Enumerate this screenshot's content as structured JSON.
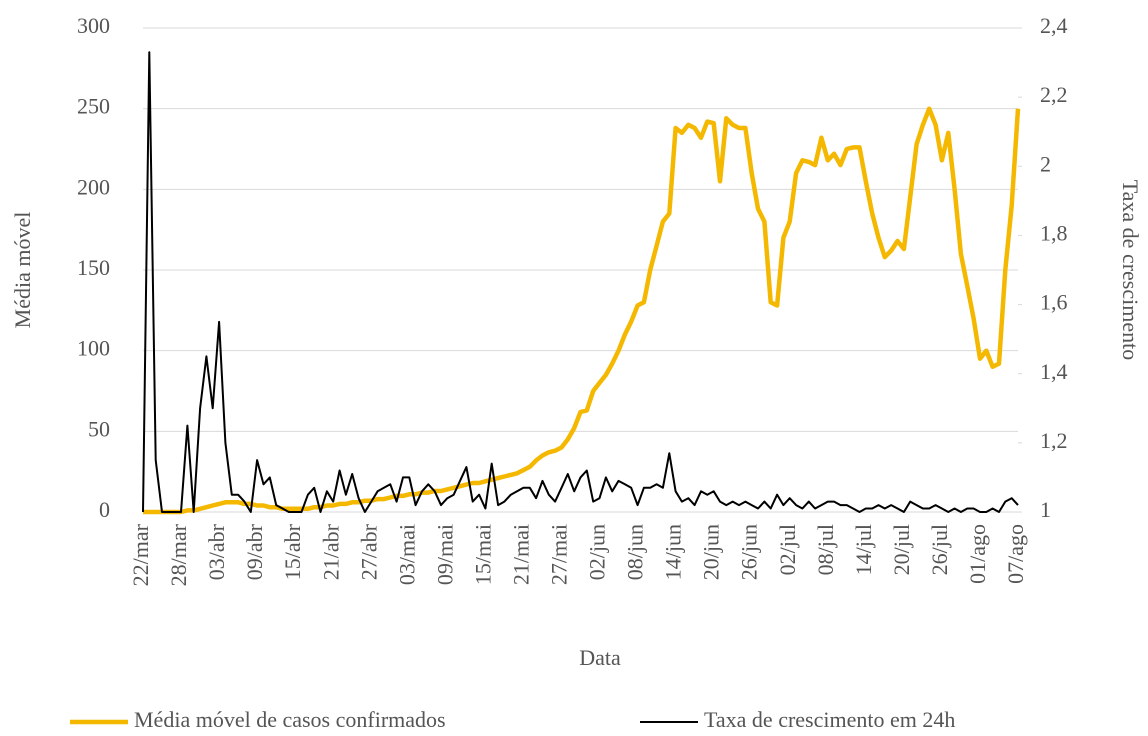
{
  "chart_data": {
    "type": "line",
    "xlabel": "Data",
    "ylabel": "Média móvel",
    "y2label": "Taxa de crescimento",
    "categories": [
      "22/mar",
      null,
      null,
      null,
      null,
      null,
      "28/mar",
      null,
      null,
      null,
      null,
      null,
      "03/abr",
      null,
      null,
      null,
      null,
      null,
      "09/abr",
      null,
      null,
      null,
      null,
      null,
      "15/abr",
      null,
      null,
      null,
      null,
      null,
      "21/abr",
      null,
      null,
      null,
      null,
      null,
      "27/abr",
      null,
      null,
      null,
      null,
      null,
      "03/mai",
      null,
      null,
      null,
      null,
      null,
      "09/mai",
      null,
      null,
      null,
      null,
      null,
      "15/mai",
      null,
      null,
      null,
      null,
      null,
      "21/mai",
      null,
      null,
      null,
      null,
      null,
      "27/mai",
      null,
      null,
      null,
      null,
      null,
      "02/jun",
      null,
      null,
      null,
      null,
      null,
      "08/jun",
      null,
      null,
      null,
      null,
      null,
      "14/jun",
      null,
      null,
      null,
      null,
      null,
      "20/jun",
      null,
      null,
      null,
      null,
      null,
      "26/jun",
      null,
      null,
      null,
      null,
      null,
      "02/jul",
      null,
      null,
      null,
      null,
      null,
      "08/jul",
      null,
      null,
      null,
      null,
      null,
      "14/jul",
      null,
      null,
      null,
      null,
      null,
      "20/jul",
      null,
      null,
      null,
      null,
      null,
      "26/jul",
      null,
      null,
      null,
      null,
      null,
      "01/ago",
      null,
      null,
      null,
      null,
      null,
      "07/ago"
    ],
    "series": [
      {
        "name": "Média móvel de casos confirmados",
        "color": "#f5b800",
        "values": [
          0,
          0,
          0,
          0,
          0,
          0,
          0,
          1,
          1,
          2,
          3,
          4,
          5,
          6,
          6,
          6,
          5,
          5,
          4,
          4,
          3,
          3,
          2,
          2,
          2,
          2,
          2,
          3,
          3,
          4,
          4,
          5,
          5,
          6,
          6,
          7,
          7,
          8,
          8,
          9,
          10,
          10,
          11,
          11,
          12,
          12,
          13,
          13,
          14,
          15,
          16,
          17,
          18,
          18,
          19,
          20,
          21,
          22,
          23,
          24,
          26,
          28,
          32,
          35,
          37,
          38,
          40,
          45,
          52,
          62,
          63,
          75,
          80,
          85,
          92,
          100,
          110,
          118,
          128,
          130,
          150,
          165,
          180,
          185,
          238,
          235,
          240,
          238,
          232,
          242,
          241,
          205,
          244,
          240,
          238,
          238,
          210,
          188,
          180,
          130,
          128,
          170,
          180,
          210,
          218,
          217,
          215,
          232,
          218,
          222,
          215,
          225,
          226,
          226,
          205,
          185,
          170,
          158,
          162,
          168,
          163,
          195,
          228,
          240,
          250,
          240,
          218,
          235,
          200,
          160,
          140,
          120,
          95,
          100,
          90,
          92,
          150,
          190,
          250
        ]
      },
      {
        "name": "Taxa de crescimento em 24h",
        "color": "#000000",
        "axis": "y2",
        "values": [
          1.0,
          2.33,
          1.15,
          1.0,
          1.0,
          1.0,
          1.0,
          1.25,
          1.0,
          1.3,
          1.45,
          1.3,
          1.55,
          1.2,
          1.05,
          1.05,
          1.03,
          1.0,
          1.15,
          1.08,
          1.1,
          1.02,
          1.01,
          1.0,
          1.0,
          1.0,
          1.05,
          1.07,
          1.0,
          1.06,
          1.03,
          1.12,
          1.05,
          1.11,
          1.04,
          1.0,
          1.03,
          1.06,
          1.07,
          1.08,
          1.03,
          1.1,
          1.1,
          1.02,
          1.06,
          1.08,
          1.06,
          1.02,
          1.04,
          1.05,
          1.09,
          1.13,
          1.03,
          1.05,
          1.01,
          1.14,
          1.02,
          1.03,
          1.05,
          1.06,
          1.07,
          1.07,
          1.04,
          1.09,
          1.05,
          1.03,
          1.07,
          1.11,
          1.06,
          1.1,
          1.12,
          1.03,
          1.04,
          1.1,
          1.06,
          1.09,
          1.08,
          1.07,
          1.02,
          1.07,
          1.07,
          1.08,
          1.07,
          1.17,
          1.06,
          1.03,
          1.04,
          1.02,
          1.06,
          1.05,
          1.06,
          1.03,
          1.02,
          1.03,
          1.02,
          1.03,
          1.02,
          1.01,
          1.03,
          1.01,
          1.05,
          1.02,
          1.04,
          1.02,
          1.01,
          1.03,
          1.01,
          1.02,
          1.03,
          1.03,
          1.02,
          1.02,
          1.01,
          1.0,
          1.01,
          1.01,
          1.02,
          1.01,
          1.02,
          1.01,
          1.0,
          1.03,
          1.02,
          1.01,
          1.01,
          1.02,
          1.01,
          1.0,
          1.01,
          1.0,
          1.01,
          1.01,
          1.0,
          1.0,
          1.01,
          1.0,
          1.03,
          1.04,
          1.02
        ]
      }
    ],
    "ylim": [
      0,
      300
    ],
    "yticks": [
      0,
      50,
      100,
      150,
      200,
      250,
      300
    ],
    "y2lim": [
      1,
      2.4
    ],
    "y2ticks": [
      1,
      {
        "value": 1.2,
        "label": "1,2"
      },
      {
        "value": 1.4,
        "label": "1,4"
      },
      {
        "value": 1.6,
        "label": "1,6"
      },
      {
        "value": 1.8,
        "label": "1,8"
      },
      2,
      {
        "value": 2.2,
        "label": "2,2"
      },
      {
        "value": 2.4,
        "label": "2,4"
      }
    ],
    "grid": true,
    "legend": "bottom"
  }
}
